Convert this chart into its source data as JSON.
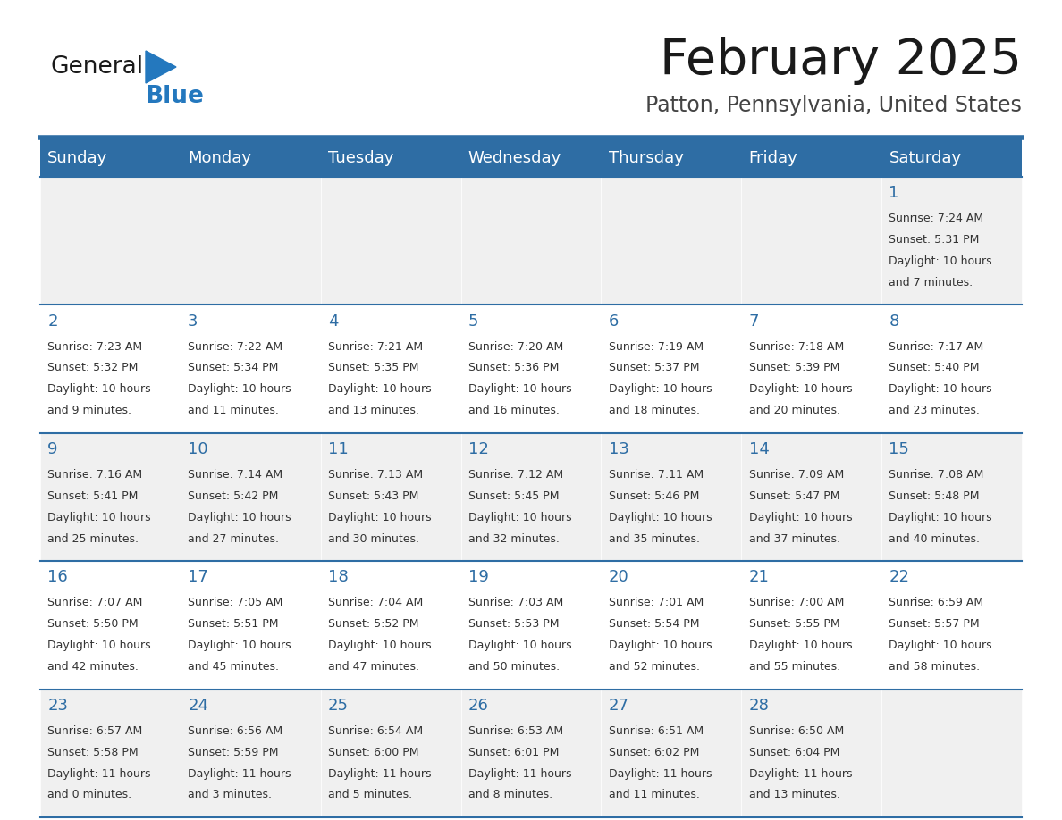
{
  "title": "February 2025",
  "subtitle": "Patton, Pennsylvania, United States",
  "header_bg_color": "#2E6DA4",
  "header_text_color": "#FFFFFF",
  "day_names": [
    "Sunday",
    "Monday",
    "Tuesday",
    "Wednesday",
    "Thursday",
    "Friday",
    "Saturday"
  ],
  "cell_bg_even": "#F0F0F0",
  "cell_bg_odd": "#FFFFFF",
  "separator_color": "#2E6DA4",
  "day_number_color": "#2E6DA4",
  "text_color": "#333333",
  "logo_general_color": "#1A1A1A",
  "logo_blue_color": "#2478BE",
  "days": [
    {
      "date": 1,
      "col": 6,
      "row": 0,
      "sunrise": "7:24 AM",
      "sunset": "5:31 PM",
      "daylight_h": "10 hours",
      "daylight_m": "and 7 minutes."
    },
    {
      "date": 2,
      "col": 0,
      "row": 1,
      "sunrise": "7:23 AM",
      "sunset": "5:32 PM",
      "daylight_h": "10 hours",
      "daylight_m": "and 9 minutes."
    },
    {
      "date": 3,
      "col": 1,
      "row": 1,
      "sunrise": "7:22 AM",
      "sunset": "5:34 PM",
      "daylight_h": "10 hours",
      "daylight_m": "and 11 minutes."
    },
    {
      "date": 4,
      "col": 2,
      "row": 1,
      "sunrise": "7:21 AM",
      "sunset": "5:35 PM",
      "daylight_h": "10 hours",
      "daylight_m": "and 13 minutes."
    },
    {
      "date": 5,
      "col": 3,
      "row": 1,
      "sunrise": "7:20 AM",
      "sunset": "5:36 PM",
      "daylight_h": "10 hours",
      "daylight_m": "and 16 minutes."
    },
    {
      "date": 6,
      "col": 4,
      "row": 1,
      "sunrise": "7:19 AM",
      "sunset": "5:37 PM",
      "daylight_h": "10 hours",
      "daylight_m": "and 18 minutes."
    },
    {
      "date": 7,
      "col": 5,
      "row": 1,
      "sunrise": "7:18 AM",
      "sunset": "5:39 PM",
      "daylight_h": "10 hours",
      "daylight_m": "and 20 minutes."
    },
    {
      "date": 8,
      "col": 6,
      "row": 1,
      "sunrise": "7:17 AM",
      "sunset": "5:40 PM",
      "daylight_h": "10 hours",
      "daylight_m": "and 23 minutes."
    },
    {
      "date": 9,
      "col": 0,
      "row": 2,
      "sunrise": "7:16 AM",
      "sunset": "5:41 PM",
      "daylight_h": "10 hours",
      "daylight_m": "and 25 minutes."
    },
    {
      "date": 10,
      "col": 1,
      "row": 2,
      "sunrise": "7:14 AM",
      "sunset": "5:42 PM",
      "daylight_h": "10 hours",
      "daylight_m": "and 27 minutes."
    },
    {
      "date": 11,
      "col": 2,
      "row": 2,
      "sunrise": "7:13 AM",
      "sunset": "5:43 PM",
      "daylight_h": "10 hours",
      "daylight_m": "and 30 minutes."
    },
    {
      "date": 12,
      "col": 3,
      "row": 2,
      "sunrise": "7:12 AM",
      "sunset": "5:45 PM",
      "daylight_h": "10 hours",
      "daylight_m": "and 32 minutes."
    },
    {
      "date": 13,
      "col": 4,
      "row": 2,
      "sunrise": "7:11 AM",
      "sunset": "5:46 PM",
      "daylight_h": "10 hours",
      "daylight_m": "and 35 minutes."
    },
    {
      "date": 14,
      "col": 5,
      "row": 2,
      "sunrise": "7:09 AM",
      "sunset": "5:47 PM",
      "daylight_h": "10 hours",
      "daylight_m": "and 37 minutes."
    },
    {
      "date": 15,
      "col": 6,
      "row": 2,
      "sunrise": "7:08 AM",
      "sunset": "5:48 PM",
      "daylight_h": "10 hours",
      "daylight_m": "and 40 minutes."
    },
    {
      "date": 16,
      "col": 0,
      "row": 3,
      "sunrise": "7:07 AM",
      "sunset": "5:50 PM",
      "daylight_h": "10 hours",
      "daylight_m": "and 42 minutes."
    },
    {
      "date": 17,
      "col": 1,
      "row": 3,
      "sunrise": "7:05 AM",
      "sunset": "5:51 PM",
      "daylight_h": "10 hours",
      "daylight_m": "and 45 minutes."
    },
    {
      "date": 18,
      "col": 2,
      "row": 3,
      "sunrise": "7:04 AM",
      "sunset": "5:52 PM",
      "daylight_h": "10 hours",
      "daylight_m": "and 47 minutes."
    },
    {
      "date": 19,
      "col": 3,
      "row": 3,
      "sunrise": "7:03 AM",
      "sunset": "5:53 PM",
      "daylight_h": "10 hours",
      "daylight_m": "and 50 minutes."
    },
    {
      "date": 20,
      "col": 4,
      "row": 3,
      "sunrise": "7:01 AM",
      "sunset": "5:54 PM",
      "daylight_h": "10 hours",
      "daylight_m": "and 52 minutes."
    },
    {
      "date": 21,
      "col": 5,
      "row": 3,
      "sunrise": "7:00 AM",
      "sunset": "5:55 PM",
      "daylight_h": "10 hours",
      "daylight_m": "and 55 minutes."
    },
    {
      "date": 22,
      "col": 6,
      "row": 3,
      "sunrise": "6:59 AM",
      "sunset": "5:57 PM",
      "daylight_h": "10 hours",
      "daylight_m": "and 58 minutes."
    },
    {
      "date": 23,
      "col": 0,
      "row": 4,
      "sunrise": "6:57 AM",
      "sunset": "5:58 PM",
      "daylight_h": "11 hours",
      "daylight_m": "and 0 minutes."
    },
    {
      "date": 24,
      "col": 1,
      "row": 4,
      "sunrise": "6:56 AM",
      "sunset": "5:59 PM",
      "daylight_h": "11 hours",
      "daylight_m": "and 3 minutes."
    },
    {
      "date": 25,
      "col": 2,
      "row": 4,
      "sunrise": "6:54 AM",
      "sunset": "6:00 PM",
      "daylight_h": "11 hours",
      "daylight_m": "and 5 minutes."
    },
    {
      "date": 26,
      "col": 3,
      "row": 4,
      "sunrise": "6:53 AM",
      "sunset": "6:01 PM",
      "daylight_h": "11 hours",
      "daylight_m": "and 8 minutes."
    },
    {
      "date": 27,
      "col": 4,
      "row": 4,
      "sunrise": "6:51 AM",
      "sunset": "6:02 PM",
      "daylight_h": "11 hours",
      "daylight_m": "and 11 minutes."
    },
    {
      "date": 28,
      "col": 5,
      "row": 4,
      "sunrise": "6:50 AM",
      "sunset": "6:04 PM",
      "daylight_h": "11 hours",
      "daylight_m": "and 13 minutes."
    }
  ]
}
